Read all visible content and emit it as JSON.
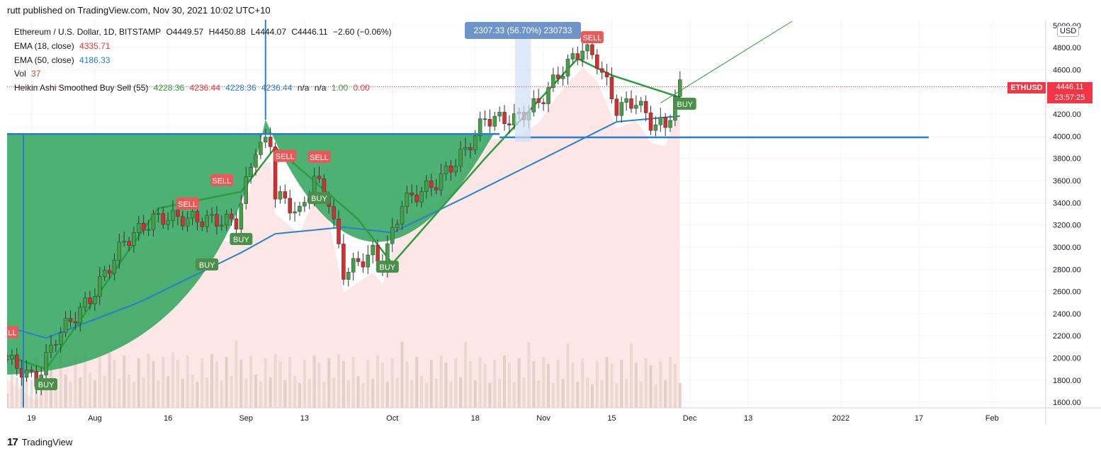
{
  "header": {
    "published": "rutt published on TradingView.com, Nov 30, 2021 10:02 UTC+10"
  },
  "legend": {
    "symbol": "Ethereum / U.S. Dollar, 1D, BITSTAMP",
    "open": "O4449.57",
    "high": "H4450.88",
    "low": "L4444.07",
    "close": "C4446.11",
    "change": "−2.60 (−0.06%)",
    "ema18_label": "EMA (18, close)",
    "ema18_value": "4335.71",
    "ema50_label": "EMA (50, close)",
    "ema50_value": "4186.33",
    "vol_label": "Vol",
    "vol_value": "37",
    "ha_label": "Heikin Ashi Smoothed Buy Sell (55)",
    "ha_values": [
      "4228.36",
      "4236.44",
      "4228.36",
      "4236.44",
      "n/a",
      "n/a",
      "1.00",
      "0.00"
    ]
  },
  "measure_label": "2307.33 (56.70%) 230733",
  "currency": "USD",
  "price_tag": {
    "symbol": "ETHUSD",
    "price": "4446.11",
    "countdown": "23:57:25"
  },
  "footer": {
    "brand": "TradingView",
    "logo_text": "17"
  },
  "colors": {
    "bull": "#43a047",
    "bear": "#d32f2f",
    "cup": "#2ea35a",
    "ema50": "#2a7fc9",
    "ema18_up": "#2e9b3e",
    "ema18_down": "#c62828",
    "shade": "#fde2e2",
    "horizontal_line": "#2a7fc9",
    "signal_buy": "#4a8f4a",
    "signal_sell": "#e85a5a"
  },
  "chart_data": {
    "type": "candlestick",
    "symbol": "ETHUSD",
    "timeframe": "1D",
    "y_axis": {
      "ticks": [
        1600,
        1800,
        2000,
        2200,
        2400,
        2600,
        2800,
        3000,
        3200,
        3400,
        3600,
        3800,
        4000,
        4200,
        4400,
        4600,
        4800,
        5000
      ],
      "tick_labels": [
        "1600.00",
        "1800.00",
        "2000.00",
        "2200.00",
        "2400.00",
        "2600.00",
        "2800.00",
        "3000.00",
        "3200.00",
        "3400.00",
        "3600.00",
        "3800.00",
        "4000.00",
        "4200.00",
        "4400.00",
        "4600.00",
        "4800.00",
        "5000.00"
      ],
      "range": [
        1550,
        5050
      ]
    },
    "x_axis": {
      "range": [
        "2021-07-14",
        "2022-02-12"
      ],
      "ticks": [
        {
          "date": "2021-07-19",
          "label": "19"
        },
        {
          "date": "2021-08-01",
          "label": "Aug"
        },
        {
          "date": "2021-08-16",
          "label": "16"
        },
        {
          "date": "2021-09-01",
          "label": "Sep"
        },
        {
          "date": "2021-09-13",
          "label": "13"
        },
        {
          "date": "2021-10-01",
          "label": "Oct"
        },
        {
          "date": "2021-10-18",
          "label": "18"
        },
        {
          "date": "2021-11-01",
          "label": "Nov"
        },
        {
          "date": "2021-11-15",
          "label": "15"
        },
        {
          "date": "2021-12-01",
          "label": "Dec"
        },
        {
          "date": "2021-12-13",
          "label": "13"
        },
        {
          "date": "2022-01-01",
          "label": "2022"
        },
        {
          "date": "2022-01-17",
          "label": "17"
        },
        {
          "date": "2022-02-01",
          "label": "Feb"
        }
      ]
    },
    "close_key_points": [
      {
        "date": "2021-07-14",
        "close": 1990
      },
      {
        "date": "2021-07-20",
        "close": 1790
      },
      {
        "date": "2021-07-24",
        "close": 2190
      },
      {
        "date": "2021-07-31",
        "close": 2530
      },
      {
        "date": "2021-08-07",
        "close": 3050
      },
      {
        "date": "2021-08-13",
        "close": 3250
      },
      {
        "date": "2021-08-16",
        "close": 3270
      },
      {
        "date": "2021-08-22",
        "close": 3250
      },
      {
        "date": "2021-08-30",
        "close": 3230
      },
      {
        "date": "2021-09-03",
        "close": 3900
      },
      {
        "date": "2021-09-06",
        "close": 3950
      },
      {
        "date": "2021-09-07",
        "close": 3480
      },
      {
        "date": "2021-09-12",
        "close": 3300
      },
      {
        "date": "2021-09-15",
        "close": 3620
      },
      {
        "date": "2021-09-18",
        "close": 3420
      },
      {
        "date": "2021-09-21",
        "close": 2770
      },
      {
        "date": "2021-09-27",
        "close": 2950
      },
      {
        "date": "2021-09-29",
        "close": 2850
      },
      {
        "date": "2021-10-03",
        "close": 3400
      },
      {
        "date": "2021-10-10",
        "close": 3580
      },
      {
        "date": "2021-10-16",
        "close": 3870
      },
      {
        "date": "2021-10-20",
        "close": 4160
      },
      {
        "date": "2021-10-26",
        "close": 4150
      },
      {
        "date": "2021-10-31",
        "close": 4300
      },
      {
        "date": "2021-11-04",
        "close": 4550
      },
      {
        "date": "2021-11-09",
        "close": 4800
      },
      {
        "date": "2021-11-12",
        "close": 4680
      },
      {
        "date": "2021-11-16",
        "close": 4250
      },
      {
        "date": "2021-11-20",
        "close": 4320
      },
      {
        "date": "2021-11-23",
        "close": 4120
      },
      {
        "date": "2021-11-26",
        "close": 4090
      },
      {
        "date": "2021-11-29",
        "close": 4450
      }
    ],
    "ema50_key_points": [
      {
        "date": "2021-07-14",
        "value": 2280
      },
      {
        "date": "2021-07-22",
        "value": 2180
      },
      {
        "date": "2021-08-10",
        "value": 2500
      },
      {
        "date": "2021-08-31",
        "value": 2950
      },
      {
        "date": "2021-09-07",
        "value": 3120
      },
      {
        "date": "2021-09-21",
        "value": 3180
      },
      {
        "date": "2021-10-01",
        "value": 3130
      },
      {
        "date": "2021-10-16",
        "value": 3450
      },
      {
        "date": "2021-11-01",
        "value": 3800
      },
      {
        "date": "2021-11-16",
        "value": 4130
      },
      {
        "date": "2021-11-30",
        "value": 4186
      }
    ],
    "ema18_key_points": [
      {
        "date": "2021-07-14",
        "value": 2020
      },
      {
        "date": "2021-07-22",
        "value": 1900
      },
      {
        "date": "2021-08-14",
        "value": 3350
      },
      {
        "date": "2021-08-31",
        "value": 3500
      },
      {
        "date": "2021-09-07",
        "value": 3900
      },
      {
        "date": "2021-09-24",
        "value": 3250
      },
      {
        "date": "2021-10-01",
        "value": 2850
      },
      {
        "date": "2021-10-20",
        "value": 3800
      },
      {
        "date": "2021-11-08",
        "value": 4700
      },
      {
        "date": "2021-11-15",
        "value": 4550
      },
      {
        "date": "2021-11-30",
        "value": 4336
      }
    ],
    "horizontal_lines": [
      {
        "price": 4020,
        "from": "2021-07-14",
        "to": "2021-10-23"
      },
      {
        "price": 3990,
        "from": "2021-10-23",
        "to": "2022-01-19"
      }
    ],
    "signals": [
      {
        "date": "2021-07-14",
        "price": 2230,
        "label": "SELL",
        "type": "sell"
      },
      {
        "date": "2021-07-22",
        "price": 1760,
        "label": "BUY",
        "type": "buy"
      },
      {
        "date": "2021-08-20",
        "price": 3390,
        "label": "SELL",
        "type": "sell"
      },
      {
        "date": "2021-08-24",
        "price": 2840,
        "label": "BUY",
        "type": "buy"
      },
      {
        "date": "2021-08-27",
        "price": 3600,
        "label": "SELL",
        "type": "sell"
      },
      {
        "date": "2021-08-31",
        "price": 3070,
        "label": "BUY",
        "type": "buy"
      },
      {
        "date": "2021-09-09",
        "price": 3820,
        "label": "SELL",
        "type": "sell"
      },
      {
        "date": "2021-09-16",
        "price": 3810,
        "label": "SELL",
        "type": "sell"
      },
      {
        "date": "2021-09-16",
        "price": 3440,
        "label": "BUY",
        "type": "buy"
      },
      {
        "date": "2021-09-30",
        "price": 2820,
        "label": "BUY",
        "type": "buy"
      },
      {
        "date": "2021-11-11",
        "price": 4890,
        "label": "SELL",
        "type": "sell"
      },
      {
        "date": "2021-11-30",
        "price": 4290,
        "label": "BUY",
        "type": "buy"
      }
    ]
  }
}
